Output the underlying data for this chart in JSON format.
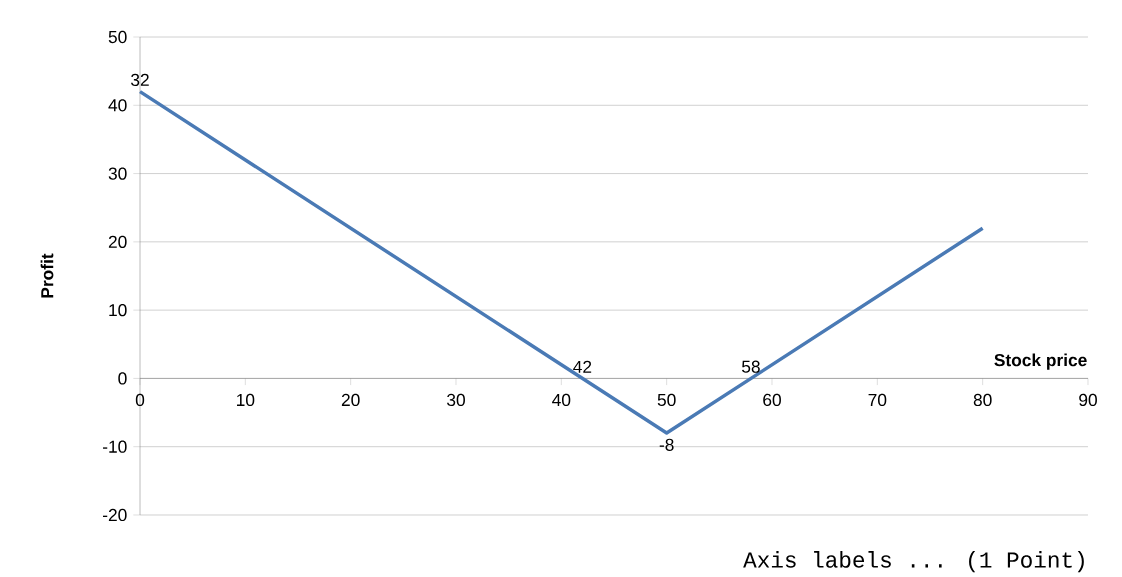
{
  "chart_data": {
    "type": "line",
    "x": [
      0,
      50,
      80
    ],
    "values": [
      42,
      -8,
      22
    ],
    "color": "#4a7ab5",
    "xlabel": "Stock price",
    "ylabel": "Profit",
    "xlim": [
      0,
      90
    ],
    "xticks": [
      0,
      10,
      20,
      30,
      40,
      50,
      60,
      70,
      80,
      90
    ],
    "ylim": [
      -20,
      50
    ],
    "yticks": [
      -20,
      -10,
      0,
      10,
      20,
      30,
      40,
      50
    ],
    "grid": "y",
    "marker": "none",
    "line_style": "solid",
    "annotations": [
      {
        "text": "32",
        "x": 0,
        "y": 42
      },
      {
        "text": "42",
        "x": 42,
        "y": 0
      },
      {
        "text": "58",
        "x": 58,
        "y": 0
      },
      {
        "text": "-8",
        "x": 50,
        "y": -8
      },
      "Axis labels ... (1 Point)"
    ]
  }
}
